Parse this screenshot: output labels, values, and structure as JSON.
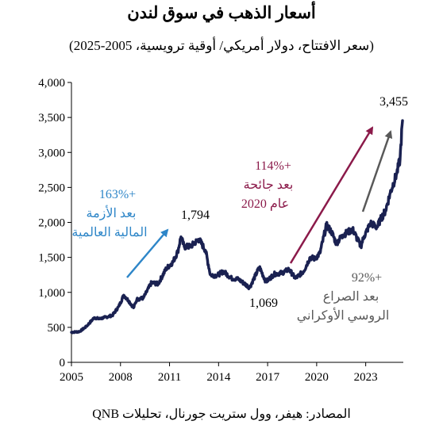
{
  "title": "أسعار الذهب في سوق لندن",
  "subtitle": "(سعر الافتتاح، دولار أمريكي/ أوقية ترويسية، 2005-2025)",
  "source": "المصادر: هيفر، وول ستريت جورنال، تحليلات QNB",
  "colors": {
    "line": "#1a2151",
    "gfc": "#2e86c8",
    "covid": "#8b1a4a",
    "ukraine": "#595959"
  },
  "chart_data": {
    "type": "line",
    "title": "أسعار الذهب في سوق لندن",
    "xlim": [
      2005,
      2025.3
    ],
    "ylim": [
      0,
      4000
    ],
    "x_ticks": [
      "2005",
      "2008",
      "2011",
      "2014",
      "2017",
      "2020",
      "2023"
    ],
    "y_ticks": [
      "0",
      "500",
      "1,000",
      "1,500",
      "2,000",
      "2,500",
      "3,000",
      "3,500",
      "4,000"
    ],
    "grid": false,
    "legend": "none",
    "series": [
      {
        "x": [
          2005.0,
          2005.5,
          2005.9,
          2006.4,
          2006.7,
          2007.0,
          2007.5,
          2007.9,
          2008.2,
          2008.5,
          2008.8,
          2009.0,
          2009.4,
          2009.9,
          2010.3,
          2010.8,
          2011.2,
          2011.5,
          2011.7,
          2011.9,
          2012.3,
          2012.8,
          2013.2,
          2013.5,
          2013.9,
          2014.3,
          2014.8,
          2015.2,
          2015.9,
          2016.5,
          2016.9,
          2017.4,
          2017.9,
          2018.3,
          2018.7,
          2019.2,
          2019.6,
          2019.9,
          2020.2,
          2020.6,
          2020.9,
          2021.2,
          2021.6,
          2022.2,
          2022.7,
          2022.9,
          2023.3,
          2023.7,
          2023.9,
          2024.2,
          2024.5,
          2024.9,
          2025.1,
          2025.25
        ],
        "y": [
          430,
          440,
          510,
          640,
          620,
          640,
          670,
          800,
          960,
          880,
          780,
          900,
          920,
          1140,
          1120,
          1340,
          1430,
          1580,
          1794,
          1650,
          1660,
          1760,
          1600,
          1250,
          1240,
          1300,
          1200,
          1190,
          1069,
          1360,
          1150,
          1260,
          1280,
          1330,
          1200,
          1300,
          1500,
          1480,
          1560,
          1960,
          1870,
          1700,
          1820,
          1900,
          1660,
          1800,
          1990,
          1930,
          2040,
          2160,
          2420,
          2700,
          2900,
          3455
        ]
      }
    ],
    "annotations": [
      {
        "text_lines": [
          "+163%",
          "بعد الأزمة",
          "المالية العالمية"
        ],
        "label_color": "gfc"
      },
      {
        "text_lines": [
          "+114%",
          "بعد جائحة",
          "عام 2020"
        ],
        "label_color": "covid"
      },
      {
        "text_lines": [
          "+92%",
          "بعد الصراع",
          "الروسي الأوكراني"
        ],
        "label_color": "ukraine"
      }
    ],
    "point_labels": [
      {
        "text": "1,794",
        "x": 2011.7,
        "y": 1794
      },
      {
        "text": "1,069",
        "x": 2015.9,
        "y": 1069
      },
      {
        "text": "3,455",
        "x": 2025.25,
        "y": 3455
      }
    ]
  }
}
